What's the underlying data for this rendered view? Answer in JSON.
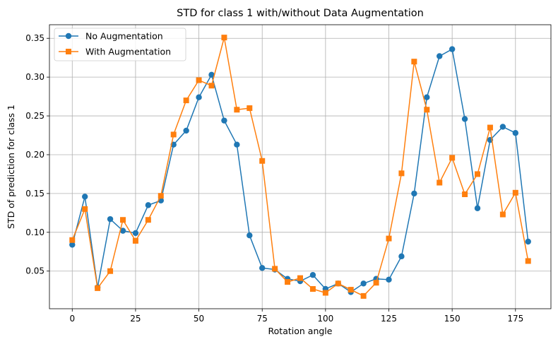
{
  "chart_data": {
    "type": "line",
    "title": "STD for class 1 with/without Data Augmentation",
    "xlabel": "Rotation angle",
    "ylabel": "STD of prediction for class 1",
    "xlim": [
      -9,
      189
    ],
    "ylim": [
      0.0015,
      0.3675
    ],
    "xticks": [
      0,
      25,
      50,
      75,
      100,
      125,
      150,
      175
    ],
    "yticks": [
      0.05,
      0.1,
      0.15,
      0.2,
      0.25,
      0.3,
      0.35
    ],
    "ytick_labels": [
      "0.05",
      "0.10",
      "0.15",
      "0.20",
      "0.25",
      "0.30",
      "0.35"
    ],
    "grid": true,
    "legend_position": "top-left",
    "x": [
      0,
      5,
      10,
      15,
      20,
      25,
      30,
      35,
      40,
      45,
      50,
      55,
      60,
      65,
      70,
      75,
      80,
      85,
      90,
      95,
      100,
      105,
      110,
      115,
      120,
      125,
      130,
      135,
      140,
      145,
      150,
      155,
      160,
      165,
      170,
      175,
      180
    ],
    "series": [
      {
        "name": "No Augmentation",
        "color": "#1f77b4",
        "marker": "circle",
        "values": [
          0.084,
          0.146,
          0.029,
          0.117,
          0.102,
          0.099,
          0.135,
          0.141,
          0.213,
          0.231,
          0.274,
          0.303,
          0.244,
          0.213,
          0.096,
          0.054,
          0.052,
          0.04,
          0.037,
          0.045,
          0.027,
          0.034,
          0.023,
          0.034,
          0.04,
          0.039,
          0.069,
          0.15,
          0.274,
          0.327,
          0.336,
          0.246,
          0.131,
          0.219,
          0.236,
          0.228,
          0.088
        ]
      },
      {
        "name": "With Augmentation",
        "color": "#ff7f0e",
        "marker": "square",
        "values": [
          0.09,
          0.13,
          0.028,
          0.05,
          0.116,
          0.089,
          0.116,
          0.147,
          0.226,
          0.27,
          0.296,
          0.289,
          0.351,
          0.258,
          0.26,
          0.192,
          0.053,
          0.036,
          0.041,
          0.027,
          0.022,
          0.034,
          0.026,
          0.018,
          0.035,
          0.092,
          0.176,
          0.32,
          0.258,
          0.164,
          0.196,
          0.149,
          0.175,
          0.235,
          0.123,
          0.151,
          0.063
        ]
      }
    ]
  }
}
